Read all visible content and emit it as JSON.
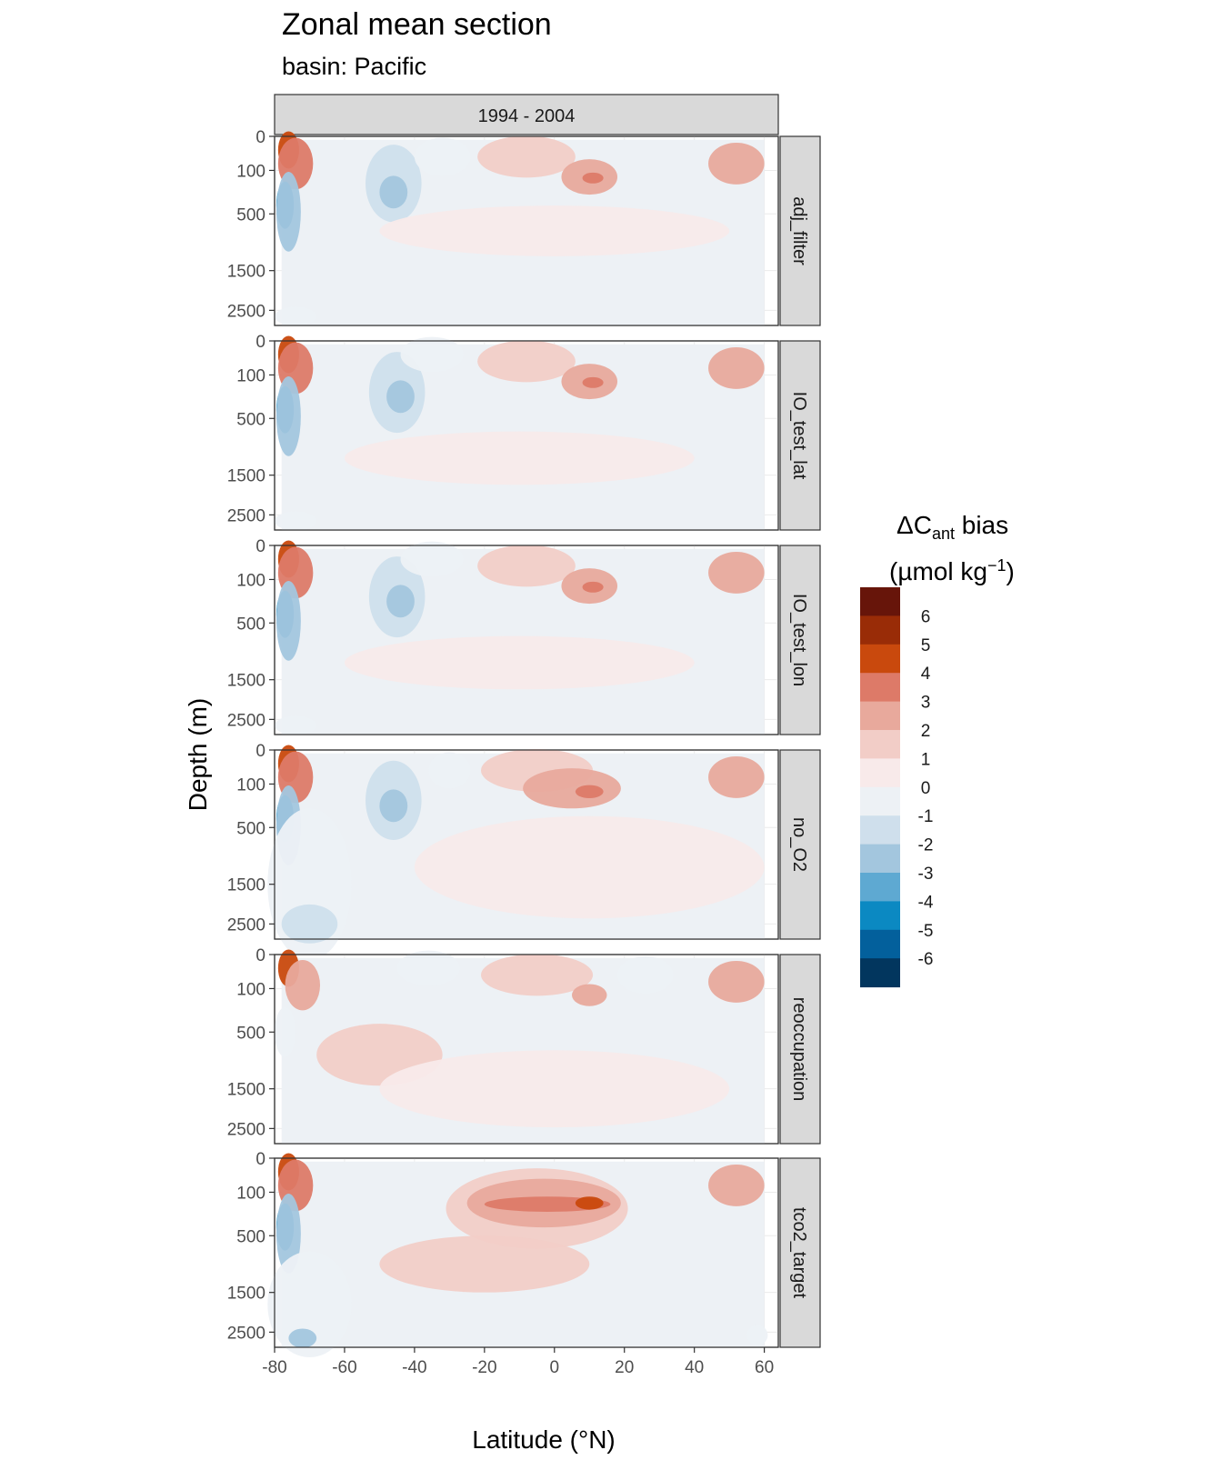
{
  "chart_data": {
    "type": "contour",
    "title": "Zonal mean section",
    "subtitle": "basin: Pacific",
    "xlabel": "Latitude (°N)",
    "ylabel": "Depth (m)",
    "column_strip": "1994 - 2004",
    "x_ticks": [
      "-80",
      "-60",
      "-40",
      "-20",
      "0",
      "20",
      "40",
      "60"
    ],
    "x_tick_values": [
      -80,
      -60,
      -40,
      -20,
      0,
      20,
      40,
      60
    ],
    "xlim": [
      -80,
      64
    ],
    "y_ticks": [
      "0",
      "100",
      "500",
      "1500",
      "2500"
    ],
    "y_tick_values": [
      0,
      100,
      500,
      1500,
      2500
    ],
    "ylim": [
      3000,
      0
    ],
    "panels": [
      {
        "name": "adj_filter"
      },
      {
        "name": "IO_test_lat"
      },
      {
        "name": "IO_test_lon"
      },
      {
        "name": "no_O2"
      },
      {
        "name": "reoccupation"
      },
      {
        "name": "tco2_target"
      }
    ],
    "legend": {
      "title_line1_prefix": "ΔC",
      "title_line1_sub": "ant",
      "title_line1_suffix": " bias",
      "title_line2_prefix": "(µmol kg",
      "title_line2_sup": "−1",
      "title_line2_suffix": ")",
      "labels": [
        "6",
        "5",
        "4",
        "3",
        "2",
        "1",
        "0",
        "-1",
        "-2",
        "-3",
        "-4",
        "-5",
        "-6"
      ],
      "colors": [
        "#67150a",
        "#992c07",
        "#c9490d",
        "#dd7a68",
        "#e8a99c",
        "#f2cdc7",
        "#f8eaea",
        "#edf1f5",
        "#cfdfec",
        "#a3c6de",
        "#5ea9d2",
        "#0b89c2",
        "#03609c",
        "#02365e"
      ]
    },
    "blobs": [
      {
        "panel": 0,
        "lat": -76,
        "depth": 40,
        "rl": 3,
        "rd": 90,
        "level": 4
      },
      {
        "panel": 0,
        "lat": -74,
        "depth": 80,
        "rl": 5,
        "rd": 180,
        "level": 3
      },
      {
        "panel": 0,
        "lat": -77,
        "depth": 420,
        "rl": 2.5,
        "rd": 260,
        "level": -5
      },
      {
        "panel": 0,
        "lat": -76,
        "depth": 480,
        "rl": 3.5,
        "rd": 420,
        "level": -3
      },
      {
        "panel": 0,
        "lat": -46,
        "depth": 220,
        "rl": 8,
        "rd": 280,
        "level": -2
      },
      {
        "panel": 0,
        "lat": -46,
        "depth": 300,
        "rl": 4,
        "rd": 150,
        "level": -3
      },
      {
        "panel": 0,
        "lat": -32,
        "depth": 60,
        "rl": 8,
        "rd": 80,
        "level": -1
      },
      {
        "panel": 0,
        "lat": -8,
        "depth": 60,
        "rl": 14,
        "rd": 110,
        "level": 1
      },
      {
        "panel": 0,
        "lat": 10,
        "depth": 160,
        "rl": 8,
        "rd": 110,
        "level": 2
      },
      {
        "panel": 0,
        "lat": 11,
        "depth": 170,
        "rl": 3,
        "rd": 50,
        "level": 3
      },
      {
        "panel": 0,
        "lat": 52,
        "depth": 80,
        "rl": 8,
        "rd": 90,
        "level": 2
      },
      {
        "panel": 0,
        "lat": 0,
        "depth": 800,
        "rl": 50,
        "rd": 400,
        "level": 0
      },
      {
        "panel": 0,
        "lat": -74,
        "depth": 2700,
        "rl": 6,
        "rd": 300,
        "level": -1
      },
      {
        "panel": 1,
        "lat": -76,
        "depth": 40,
        "rl": 3,
        "rd": 90,
        "level": 4
      },
      {
        "panel": 1,
        "lat": -74,
        "depth": 80,
        "rl": 5,
        "rd": 180,
        "level": 3
      },
      {
        "panel": 1,
        "lat": -77,
        "depth": 420,
        "rl": 2.5,
        "rd": 260,
        "level": -5
      },
      {
        "panel": 1,
        "lat": -76,
        "depth": 480,
        "rl": 3.5,
        "rd": 420,
        "level": -3
      },
      {
        "panel": 1,
        "lat": -45,
        "depth": 260,
        "rl": 8,
        "rd": 300,
        "level": -2
      },
      {
        "panel": 1,
        "lat": -44,
        "depth": 300,
        "rl": 4,
        "rd": 150,
        "level": -3
      },
      {
        "panel": 1,
        "lat": -35,
        "depth": 40,
        "rl": 9,
        "rd": 70,
        "level": -1
      },
      {
        "panel": 1,
        "lat": -8,
        "depth": 60,
        "rl": 14,
        "rd": 110,
        "level": 1
      },
      {
        "panel": 1,
        "lat": 10,
        "depth": 160,
        "rl": 8,
        "rd": 110,
        "level": 2
      },
      {
        "panel": 1,
        "lat": 11,
        "depth": 170,
        "rl": 3,
        "rd": 50,
        "level": 3
      },
      {
        "panel": 1,
        "lat": 52,
        "depth": 80,
        "rl": 8,
        "rd": 90,
        "level": 2
      },
      {
        "panel": 1,
        "lat": -10,
        "depth": 1200,
        "rl": 50,
        "rd": 500,
        "level": 0
      },
      {
        "panel": 1,
        "lat": -74,
        "depth": 2700,
        "rl": 6,
        "rd": 300,
        "level": -1
      },
      {
        "panel": 2,
        "lat": -76,
        "depth": 40,
        "rl": 3,
        "rd": 90,
        "level": 4
      },
      {
        "panel": 2,
        "lat": -74,
        "depth": 80,
        "rl": 5,
        "rd": 180,
        "level": 3
      },
      {
        "panel": 2,
        "lat": -77,
        "depth": 420,
        "rl": 2.5,
        "rd": 260,
        "level": -5
      },
      {
        "panel": 2,
        "lat": -76,
        "depth": 480,
        "rl": 3.5,
        "rd": 420,
        "level": -3
      },
      {
        "panel": 2,
        "lat": -45,
        "depth": 260,
        "rl": 8,
        "rd": 300,
        "level": -2
      },
      {
        "panel": 2,
        "lat": -44,
        "depth": 300,
        "rl": 4,
        "rd": 150,
        "level": -3
      },
      {
        "panel": 2,
        "lat": -35,
        "depth": 40,
        "rl": 9,
        "rd": 70,
        "level": -1
      },
      {
        "panel": 2,
        "lat": -8,
        "depth": 60,
        "rl": 14,
        "rd": 110,
        "level": 1
      },
      {
        "panel": 2,
        "lat": 10,
        "depth": 160,
        "rl": 8,
        "rd": 110,
        "level": 2
      },
      {
        "panel": 2,
        "lat": 11,
        "depth": 170,
        "rl": 3,
        "rd": 50,
        "level": 3
      },
      {
        "panel": 2,
        "lat": 52,
        "depth": 80,
        "rl": 8,
        "rd": 90,
        "level": 2
      },
      {
        "panel": 2,
        "lat": -10,
        "depth": 1200,
        "rl": 50,
        "rd": 500,
        "level": 0
      },
      {
        "panel": 2,
        "lat": -74,
        "depth": 2700,
        "rl": 6,
        "rd": 300,
        "level": -1
      },
      {
        "panel": 3,
        "lat": -76,
        "depth": 40,
        "rl": 3,
        "rd": 90,
        "level": 4
      },
      {
        "panel": 3,
        "lat": -74,
        "depth": 80,
        "rl": 5,
        "rd": 180,
        "level": 3
      },
      {
        "panel": 3,
        "lat": -77,
        "depth": 420,
        "rl": 2.5,
        "rd": 260,
        "level": -5
      },
      {
        "panel": 3,
        "lat": -76,
        "depth": 480,
        "rl": 3.5,
        "rd": 420,
        "level": -3
      },
      {
        "panel": 3,
        "lat": -70,
        "depth": 1500,
        "rl": 12,
        "rd": 1400,
        "level": -1
      },
      {
        "panel": 3,
        "lat": -70,
        "depth": 2500,
        "rl": 8,
        "rd": 600,
        "level": -2
      },
      {
        "panel": 3,
        "lat": -46,
        "depth": 250,
        "rl": 8,
        "rd": 280,
        "level": -2
      },
      {
        "panel": 3,
        "lat": -46,
        "depth": 300,
        "rl": 4,
        "rd": 150,
        "level": -3
      },
      {
        "panel": 3,
        "lat": -30,
        "depth": 60,
        "rl": 6,
        "rd": 60,
        "level": -1
      },
      {
        "panel": 3,
        "lat": -5,
        "depth": 60,
        "rl": 16,
        "rd": 120,
        "level": 1
      },
      {
        "panel": 3,
        "lat": 5,
        "depth": 140,
        "rl": 14,
        "rd": 110,
        "level": 2
      },
      {
        "panel": 3,
        "lat": 10,
        "depth": 170,
        "rl": 4,
        "rd": 60,
        "level": 3
      },
      {
        "panel": 3,
        "lat": 52,
        "depth": 80,
        "rl": 8,
        "rd": 90,
        "level": 2
      },
      {
        "panel": 3,
        "lat": 10,
        "depth": 1200,
        "rl": 50,
        "rd": 900,
        "level": 0
      },
      {
        "panel": 4,
        "lat": -76,
        "depth": 40,
        "rl": 3,
        "rd": 90,
        "level": 4
      },
      {
        "panel": 4,
        "lat": -72,
        "depth": 90,
        "rl": 5,
        "rd": 160,
        "level": 2
      },
      {
        "panel": 4,
        "lat": -77,
        "depth": 500,
        "rl": 3,
        "rd": 300,
        "level": -1
      },
      {
        "panel": 4,
        "lat": -50,
        "depth": 900,
        "rl": 18,
        "rd": 500,
        "level": 1
      },
      {
        "panel": 4,
        "lat": -36,
        "depth": 40,
        "rl": 9,
        "rd": 70,
        "level": -1
      },
      {
        "panel": 4,
        "lat": -5,
        "depth": 60,
        "rl": 16,
        "rd": 110,
        "level": 1
      },
      {
        "panel": 4,
        "lat": 10,
        "depth": 160,
        "rl": 5,
        "rd": 80,
        "level": 2
      },
      {
        "panel": 4,
        "lat": 26,
        "depth": 60,
        "rl": 8,
        "rd": 70,
        "level": -1
      },
      {
        "panel": 4,
        "lat": 52,
        "depth": 80,
        "rl": 8,
        "rd": 90,
        "level": 2
      },
      {
        "panel": 4,
        "lat": 0,
        "depth": 1500,
        "rl": 50,
        "rd": 800,
        "level": 0
      },
      {
        "panel": 5,
        "lat": -76,
        "depth": 40,
        "rl": 3,
        "rd": 90,
        "level": 4
      },
      {
        "panel": 5,
        "lat": -74,
        "depth": 80,
        "rl": 5,
        "rd": 180,
        "level": 3
      },
      {
        "panel": 5,
        "lat": -77,
        "depth": 420,
        "rl": 2.5,
        "rd": 260,
        "level": -5
      },
      {
        "panel": 5,
        "lat": -76,
        "depth": 480,
        "rl": 3.5,
        "rd": 420,
        "level": -3
      },
      {
        "panel": 5,
        "lat": -70,
        "depth": 1800,
        "rl": 12,
        "rd": 1200,
        "level": -1
      },
      {
        "panel": 5,
        "lat": -72,
        "depth": 2700,
        "rl": 4,
        "rd": 300,
        "level": -3
      },
      {
        "panel": 5,
        "lat": -5,
        "depth": 250,
        "rl": 26,
        "rd": 300,
        "level": 1
      },
      {
        "panel": 5,
        "lat": -3,
        "depth": 200,
        "rl": 22,
        "rd": 160,
        "level": 2
      },
      {
        "panel": 5,
        "lat": -2,
        "depth": 210,
        "rl": 18,
        "rd": 70,
        "level": 3
      },
      {
        "panel": 5,
        "lat": 10,
        "depth": 200,
        "rl": 4,
        "rd": 60,
        "level": 4
      },
      {
        "panel": 5,
        "lat": -20,
        "depth": 1000,
        "rl": 30,
        "rd": 500,
        "level": 1
      },
      {
        "panel": 5,
        "lat": 52,
        "depth": 80,
        "rl": 8,
        "rd": 90,
        "level": 2
      },
      {
        "panel": 5,
        "lat": 58,
        "depth": 2600,
        "rl": 3,
        "rd": 300,
        "level": -1
      }
    ]
  }
}
